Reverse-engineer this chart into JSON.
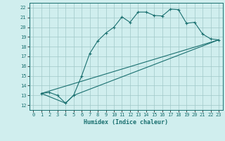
{
  "xlabel": "Humidex (Indice chaleur)",
  "xlim": [
    -0.5,
    23.5
  ],
  "ylim": [
    11.5,
    22.5
  ],
  "xticks": [
    0,
    1,
    2,
    3,
    4,
    5,
    6,
    7,
    8,
    9,
    10,
    11,
    12,
    13,
    14,
    15,
    16,
    17,
    18,
    19,
    20,
    21,
    22,
    23
  ],
  "yticks": [
    12,
    13,
    14,
    15,
    16,
    17,
    18,
    19,
    20,
    21,
    22
  ],
  "bg_color": "#d0eeee",
  "grid_color": "#a0c8c8",
  "line_color": "#1a7070",
  "line1_x": [
    1,
    2,
    3,
    4,
    5,
    6,
    7,
    8,
    9,
    10,
    11,
    12,
    13,
    14,
    15,
    16,
    17,
    18,
    19,
    20,
    21,
    22,
    23
  ],
  "line1_y": [
    13.2,
    13.3,
    13.0,
    12.2,
    13.0,
    15.0,
    17.3,
    18.6,
    19.4,
    20.0,
    21.05,
    20.5,
    21.55,
    21.55,
    21.2,
    21.15,
    21.85,
    21.8,
    20.4,
    20.5,
    19.3,
    18.8,
    18.7
  ],
  "line2_x": [
    1,
    4,
    5,
    23
  ],
  "line2_y": [
    13.2,
    12.2,
    13.0,
    18.7
  ],
  "line3_x": [
    1,
    23
  ],
  "line3_y": [
    13.2,
    18.7
  ]
}
